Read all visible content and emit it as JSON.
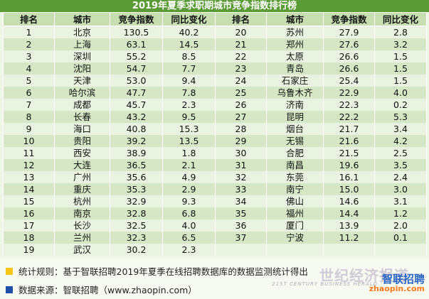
{
  "title": "2019年夏季求职期城市竞争指数排行榜",
  "headers": [
    "排名",
    "城市",
    "竞争指数",
    "同比变化",
    "排名",
    "城市",
    "竞争指数",
    "同比变化"
  ],
  "rows": [
    [
      "1",
      "北京",
      "130.5",
      "40.2",
      "20",
      "苏州",
      "27.9",
      "2.8"
    ],
    [
      "2",
      "上海",
      "63.1",
      "14.5",
      "21",
      "郑州",
      "27.6",
      "3.2"
    ],
    [
      "3",
      "深圳",
      "55.2",
      "8.5",
      "22",
      "太原",
      "26.6",
      "1.5"
    ],
    [
      "4",
      "沈阳",
      "54.7",
      "7.7",
      "23",
      "青岛",
      "26.6",
      "1.5"
    ],
    [
      "5",
      "天津",
      "53.0",
      "9.4",
      "24",
      "石家庄",
      "25.4",
      "1.5"
    ],
    [
      "6",
      "哈尔滨",
      "47.7",
      "7.8",
      "25",
      "乌鲁木齐",
      "22.9",
      "4.0"
    ],
    [
      "7",
      "成都",
      "45.7",
      "2.3",
      "26",
      "济南",
      "22.3",
      "0.2"
    ],
    [
      "8",
      "长春",
      "43.2",
      "9.5",
      "27",
      "昆明",
      "22.2",
      "5.3"
    ],
    [
      "9",
      "海口",
      "40.8",
      "15.3",
      "28",
      "烟台",
      "21.7",
      "3.4"
    ],
    [
      "10",
      "贵阳",
      "39.2",
      "13.5",
      "29",
      "无锡",
      "21.6",
      "4.2"
    ],
    [
      "11",
      "西安",
      "38.9",
      "1.8",
      "30",
      "合肥",
      "21.5",
      "2.5"
    ],
    [
      "12",
      "大连",
      "36.5",
      "2.1",
      "31",
      "南昌",
      "19.6",
      "3.5"
    ],
    [
      "13",
      "广州",
      "35.6",
      "4.9",
      "32",
      "东莞",
      "16.1",
      "2.4"
    ],
    [
      "14",
      "重庆",
      "35.3",
      "2.9",
      "33",
      "南宁",
      "15.0",
      "3.0"
    ],
    [
      "15",
      "杭州",
      "32.9",
      "9.3",
      "34",
      "佛山",
      "14.6",
      "3.1"
    ],
    [
      "16",
      "南京",
      "32.8",
      "6.8",
      "35",
      "福州",
      "14.4",
      "1.2"
    ],
    [
      "17",
      "长沙",
      "32.5",
      "4.0",
      "36",
      "厦门",
      "13.9",
      "2.0"
    ],
    [
      "18",
      "兰州",
      "32.3",
      "6.5",
      "37",
      "宁波",
      "11.2",
      "0.1"
    ],
    [
      "19",
      "武汉",
      "30.2",
      "2.3",
      "",
      "",
      "",
      ""
    ]
  ],
  "footer": {
    "rule": "统计规则：基于智联招聘2019年夏季在线招聘数据库的数据监测统计得出",
    "source": "数据来源：智联招聘（www.zhaopin.com）",
    "rule_color": "#f5c518",
    "source_color": "#1f4ea8"
  },
  "watermark": {
    "cn": "世纪经济报道",
    "en": "21ST CENTURY BUSINESS HERALD"
  },
  "logo": {
    "cn": "智联招聘",
    "en": "zhaopin.com"
  }
}
